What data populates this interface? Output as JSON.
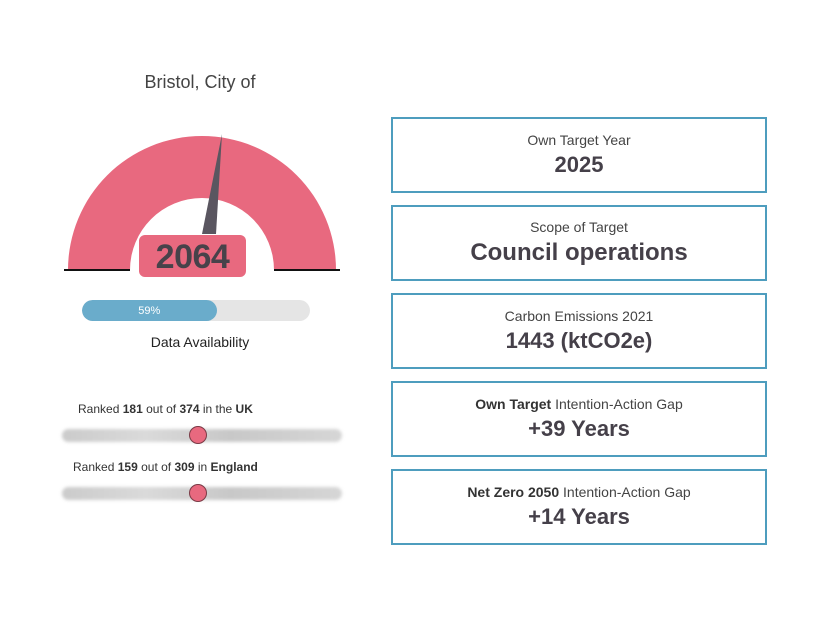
{
  "place": {
    "name": "Bristol, City of"
  },
  "gauge": {
    "value": "2064",
    "colors": {
      "arc": "#e8697f",
      "needle": "#5a5660",
      "baseline": "#111111"
    }
  },
  "data_availability": {
    "percent": 59,
    "percent_label": "59%",
    "label": "Data Availability",
    "colors": {
      "fill": "#6aaccb",
      "track": "#e5e5e5"
    }
  },
  "rankings": [
    {
      "prefix": "Ranked",
      "rank": "181",
      "middle": "out of",
      "total": "374",
      "scope_prefix": "in the",
      "scope": "UK",
      "position_fraction": 0.484
    },
    {
      "prefix": "Ranked",
      "rank": "159",
      "middle": "out of",
      "total": "309",
      "scope_prefix": "in",
      "scope": "England",
      "position_fraction": 0.487
    }
  ],
  "cards": [
    {
      "label": "Own Target Year",
      "value": "2025"
    },
    {
      "label": "Scope of Target",
      "value": "Council operations"
    },
    {
      "label": "Carbon Emissions 2021",
      "value": "1443 (ktCO2e)"
    },
    {
      "label_bold": "Own Target",
      "label_rest": "Intention-Action Gap",
      "value": "+39 Years"
    },
    {
      "label_bold": "Net Zero 2050",
      "label_rest": "Intention-Action Gap",
      "value": "+14 Years"
    }
  ],
  "colors": {
    "card_border": "#4e9dbe",
    "knob": "#e8697f"
  }
}
